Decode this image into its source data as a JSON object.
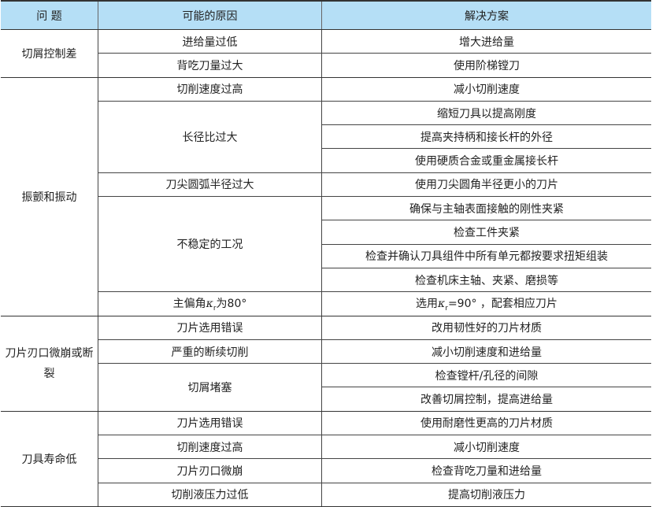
{
  "headers": [
    "问  题",
    "可能的原因",
    "解决方案"
  ],
  "groups": [
    {
      "problem": "切屑控制差",
      "causes": [
        {
          "cause": "进给量过低",
          "solutions": [
            "增大进给量"
          ]
        },
        {
          "cause": "背吃刀量过大",
          "solutions": [
            "使用阶梯镗刀"
          ]
        }
      ]
    },
    {
      "problem": "振颤和振动",
      "causes": [
        {
          "cause": "切削速度过高",
          "solutions": [
            "减小切削速度"
          ]
        },
        {
          "cause": "长径比过大",
          "solutions": [
            "缩短刀具以提高刚度",
            "提高夹持柄和接长杆的外径",
            "使用硬质合金或重金属接长杆"
          ]
        },
        {
          "cause": "刀尖圆弧半径过大",
          "solutions": [
            "使用刀尖圆角半径更小的刀片"
          ]
        },
        {
          "cause": "不稳定的工况",
          "solutions": [
            "确保与主轴表面接触的刚性夹紧",
            "检查工件夹紧",
            "检查并确认刀具组件中所有单元都按要求扭矩组装",
            "检查机床主轴、夹紧、磨损等"
          ]
        },
        {
          "cause": "",
          "solutions": [
            ""
          ]
        }
      ]
    },
    {
      "problem": "刀片刃口微崩或断裂",
      "causes": [
        {
          "cause": "刀片选用错误",
          "solutions": [
            "改用韧性好的刀片材质"
          ]
        },
        {
          "cause": "严重的断续切削",
          "solutions": [
            "减小切削速度和进给量"
          ]
        },
        {
          "cause": "切屑堵塞",
          "solutions": [
            "检查镗杆/孔径的间隙",
            "改善切屑控制，提高进给量"
          ]
        }
      ]
    },
    {
      "problem": "刀具寿命低",
      "causes": [
        {
          "cause": "刀片选用错误",
          "solutions": [
            "使用耐磨性更高的刀片材质"
          ]
        },
        {
          "cause": "切削速度过高",
          "solutions": [
            "减小切削速度"
          ]
        },
        {
          "cause": "刀片刃口微崩",
          "solutions": [
            "检查背吃刀量和进给量"
          ]
        },
        {
          "cause": "切削液压力过低",
          "solutions": [
            "提高切削液压力"
          ]
        }
      ]
    }
  ],
  "kr_row": {
    "cause_pre": "主偏角",
    "kappa": "κ",
    "sub": "r",
    "cause_post": "为80°",
    "sol_pre": "选用",
    "sol_post": "=90° ，配套相应刀片"
  }
}
